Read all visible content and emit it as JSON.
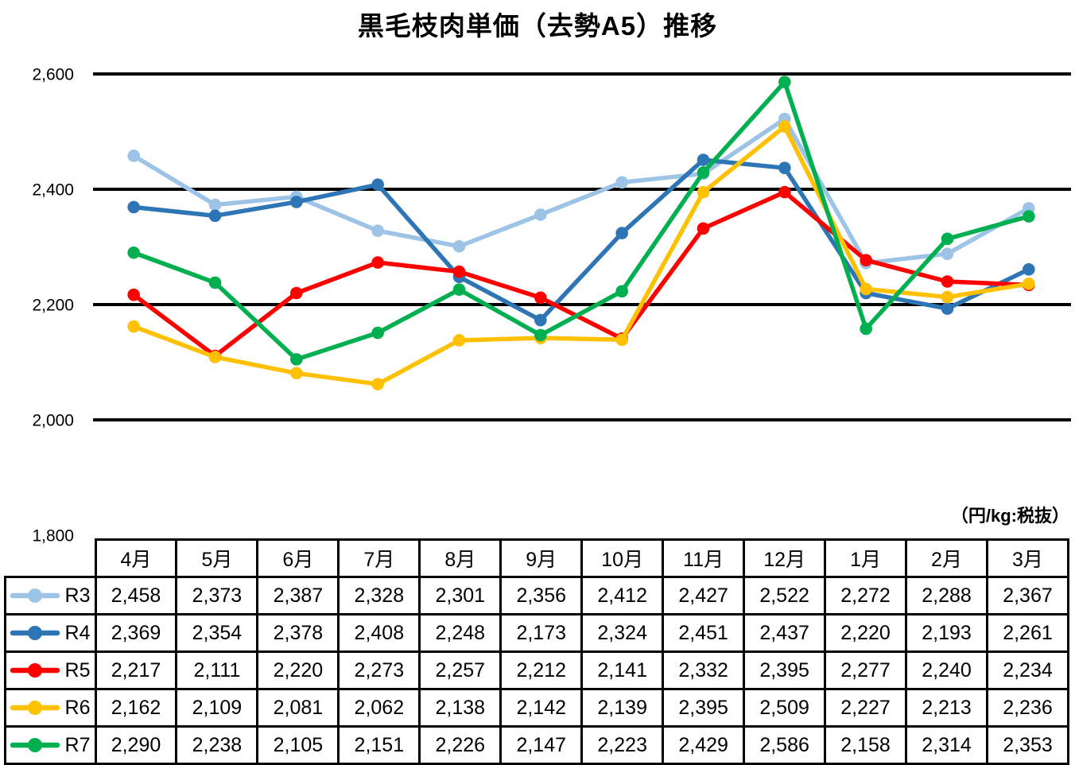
{
  "title": "黒毛枝肉単価（去勢A5）推移",
  "unit_label": "（円/kg:税抜）",
  "chart_data": {
    "type": "line",
    "title": "黒毛枝肉単価（去勢A5）推移",
    "xlabel": "",
    "ylabel": "円/kg（税抜）",
    "categories": [
      "4月",
      "5月",
      "6月",
      "7月",
      "8月",
      "9月",
      "10月",
      "11月",
      "12月",
      "1月",
      "2月",
      "3月"
    ],
    "series": [
      {
        "name": "R3",
        "color": "#9DC3E6",
        "values": [
          2458,
          2373,
          2387,
          2328,
          2301,
          2356,
          2412,
          2427,
          2522,
          2272,
          2288,
          2367
        ]
      },
      {
        "name": "R4",
        "color": "#2E75B6",
        "values": [
          2369,
          2354,
          2378,
          2408,
          2248,
          2173,
          2324,
          2451,
          2437,
          2220,
          2193,
          2261
        ]
      },
      {
        "name": "R5",
        "color": "#FF0000",
        "values": [
          2217,
          2111,
          2220,
          2273,
          2257,
          2212,
          2141,
          2332,
          2395,
          2277,
          2240,
          2234
        ]
      },
      {
        "name": "R6",
        "color": "#FFC000",
        "values": [
          2162,
          2109,
          2081,
          2062,
          2138,
          2142,
          2139,
          2395,
          2509,
          2227,
          2213,
          2236
        ]
      },
      {
        "name": "R7",
        "color": "#00B050",
        "values": [
          2290,
          2238,
          2105,
          2151,
          2226,
          2147,
          2223,
          2429,
          2586,
          2158,
          2314,
          2353
        ]
      }
    ],
    "ylim": [
      1800,
      2600
    ],
    "y_ticks": [
      2600,
      2400,
      2200,
      2000,
      1800
    ],
    "grid": true,
    "gridline_color": "#000000",
    "marker": "circle",
    "legend_position": "table-left-column"
  }
}
